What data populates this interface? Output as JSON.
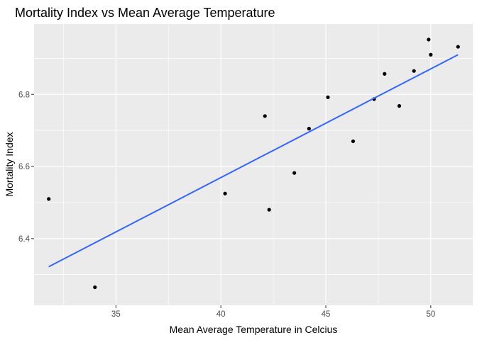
{
  "chart_data": {
    "type": "scatter",
    "title": "Mortality Index vs Mean Average Temperature",
    "xlabel": "Mean Average Temperature in Celcius",
    "ylabel": "Mortality Index",
    "xlim": [
      31.1,
      52.0
    ],
    "ylim": [
      6.215,
      6.995
    ],
    "xticks": [
      35,
      40,
      45,
      50
    ],
    "yticks": [
      6.4,
      6.6,
      6.8
    ],
    "ytick_labels": [
      "6.4",
      "6.6",
      "6.8"
    ],
    "xminor": [
      32.5,
      37.5,
      42.5,
      47.5
    ],
    "yminor": [
      6.3,
      6.5,
      6.7,
      6.9
    ],
    "grid": true,
    "points": {
      "x": [
        31.8,
        34.0,
        40.2,
        42.1,
        42.3,
        43.5,
        44.2,
        45.1,
        46.3,
        47.3,
        47.8,
        48.5,
        49.2,
        49.9,
        50.0,
        51.3
      ],
      "y": [
        6.51,
        6.265,
        6.525,
        6.74,
        6.48,
        6.582,
        6.705,
        6.792,
        6.67,
        6.787,
        6.857,
        6.768,
        6.865,
        6.952,
        6.91,
        6.932
      ]
    },
    "trend": {
      "x": [
        31.8,
        51.3
      ],
      "y": [
        6.322,
        6.91
      ]
    },
    "colors": {
      "panel": "#ebebeb",
      "grid": "#ffffff",
      "point": "#000000",
      "trend": "#3366ff"
    }
  }
}
